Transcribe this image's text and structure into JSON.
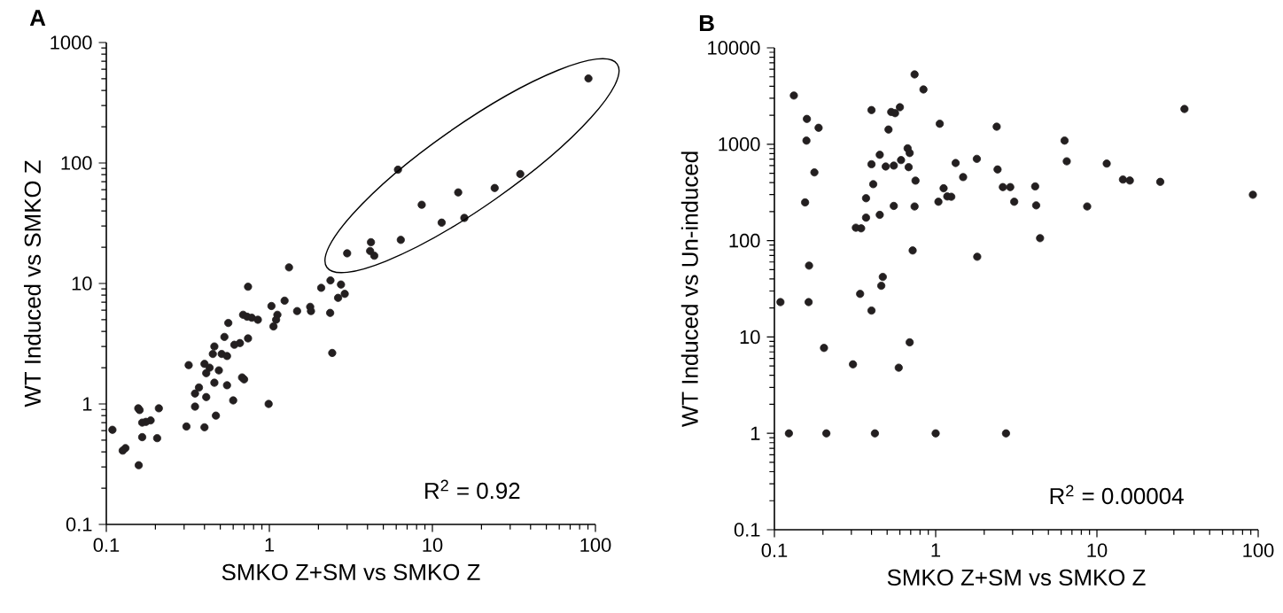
{
  "chart_data": [
    {
      "type": "scatter",
      "title": "A",
      "xlabel": "SMKO Z+SM vs SMKO Z",
      "ylabel": "WT Induced vs SMKO Z",
      "log": "xy",
      "marker": "circle",
      "color": "#231f20",
      "grid": false,
      "xlim": [
        0.1,
        100
      ],
      "ylim": [
        0.1,
        1000
      ],
      "xticks": [
        0.1,
        1,
        10,
        100
      ],
      "yticks": [
        0.1,
        1,
        10,
        100,
        1000
      ],
      "annotations": [
        "R$^{2}$ = 0.92"
      ],
      "x": [
        90.6,
        6.15,
        34.6,
        24.1,
        14.4,
        8.6,
        15.7,
        11.4,
        6.4,
        4.2,
        4.15,
        4.4,
        3.0,
        1.32,
        0.74,
        2.37,
        2.75,
        2.08,
        2.9,
        2.64,
        1.24,
        1.03,
        1.78,
        1.48,
        1.8,
        2.36,
        1.12,
        1.1,
        1.06,
        0.69,
        0.73,
        0.78,
        0.85,
        0.56,
        0.74,
        0.66,
        0.61,
        0.53,
        0.46,
        0.51,
        0.55,
        0.45,
        0.32,
        0.4,
        0.43,
        0.49,
        0.41,
        2.43,
        0.68,
        0.7,
        0.46,
        0.55,
        0.37,
        0.35,
        0.41,
        0.6,
        0.35,
        0.99,
        0.157,
        0.16,
        0.21,
        0.47,
        0.187,
        0.175,
        0.166,
        0.31,
        0.4,
        0.109,
        0.166,
        0.205,
        0.131,
        0.126,
        0.158
      ],
      "values": [
        503,
        88,
        81,
        62,
        57,
        45,
        35,
        32,
        23,
        22,
        18.6,
        17,
        17.8,
        13.6,
        9.4,
        10.6,
        9.8,
        9.2,
        8.2,
        7.6,
        7.2,
        6.5,
        6.4,
        5.9,
        5.9,
        5.7,
        5.5,
        5.0,
        4.4,
        5.5,
        5.3,
        5.2,
        5.0,
        4.7,
        3.5,
        3.2,
        3.1,
        3.6,
        3.0,
        2.6,
        2.5,
        2.6,
        2.1,
        2.15,
        2.0,
        1.9,
        1.8,
        2.65,
        1.66,
        1.6,
        1.5,
        1.43,
        1.37,
        1.22,
        1.14,
        1.07,
        0.95,
        1.0,
        0.92,
        0.89,
        0.92,
        0.8,
        0.73,
        0.71,
        0.7,
        0.65,
        0.64,
        0.61,
        0.53,
        0.52,
        0.43,
        0.41,
        0.31
      ]
    },
    {
      "type": "scatter",
      "title": "B",
      "xlabel": "SMKO Z+SM vs SMKO Z",
      "ylabel": "WT Induced vs Un-induced",
      "log": "xy",
      "marker": "circle",
      "color": "#231f20",
      "grid": false,
      "xlim": [
        0.1,
        100
      ],
      "ylim": [
        0.1,
        10000
      ],
      "xticks": [
        0.1,
        1,
        10,
        100
      ],
      "yticks": [
        0.1,
        1,
        10,
        100,
        1000,
        10000
      ],
      "annotations": [
        "R$^{2}$ = 0.00004"
      ],
      "x": [
        0.132,
        0.74,
        0.84,
        0.4,
        0.53,
        0.56,
        0.6,
        34.9,
        0.159,
        0.188,
        1.06,
        2.39,
        0.51,
        0.158,
        6.3,
        0.67,
        0.69,
        0.45,
        0.61,
        0.4,
        0.49,
        0.55,
        0.68,
        1.33,
        1.8,
        6.5,
        11.5,
        0.177,
        1.48,
        2.42,
        0.75,
        0.41,
        14.5,
        16.0,
        24.7,
        1.12,
        2.61,
        2.9,
        4.14,
        1.18,
        1.25,
        0.37,
        92.7,
        0.155,
        1.04,
        3.07,
        0.55,
        0.74,
        4.2,
        8.7,
        0.45,
        0.32,
        0.345,
        0.37,
        4.44,
        0.72,
        1.81,
        0.164,
        0.47,
        0.46,
        0.34,
        0.109,
        0.163,
        0.4,
        0.69,
        0.203,
        0.307,
        0.59,
        0.123,
        0.21,
        0.42,
        1.0,
        2.73
      ],
      "values": [
        3200,
        5300,
        3700,
        2260,
        2160,
        2100,
        2420,
        2320,
        1830,
        1480,
        1630,
        1520,
        1420,
        1090,
        1090,
        906,
        810,
        777,
        685,
        620,
        587,
        600,
        578,
        638,
        705,
        665,
        630,
        510,
        456,
        547,
        419,
        385,
        430,
        420,
        407,
        349,
        359,
        359,
        365,
        287,
        285,
        275,
        299,
        249,
        253,
        253,
        229,
        226,
        232,
        226,
        185,
        136,
        134,
        173,
        106,
        79,
        68,
        55,
        42,
        34,
        28,
        23,
        23,
        18.8,
        8.8,
        7.7,
        5.2,
        4.8,
        1,
        1,
        1,
        1,
        1
      ]
    }
  ]
}
